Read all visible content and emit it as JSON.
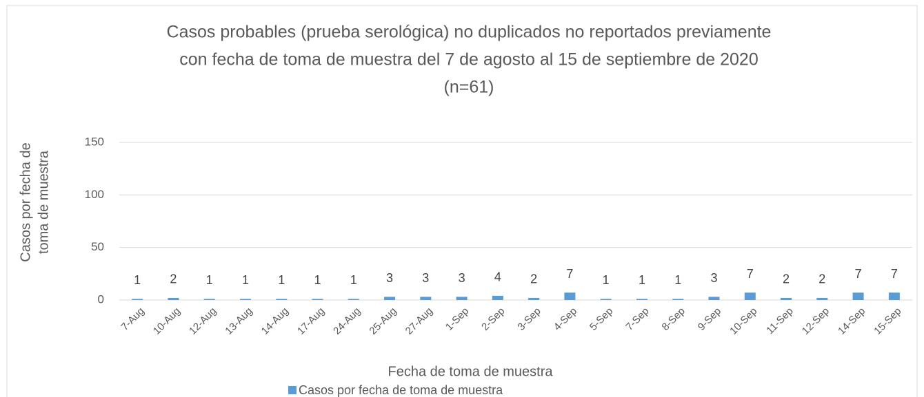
{
  "chart_data": {
    "type": "bar",
    "title": [
      "Casos probables (prueba serológica) no duplicados no reportados previamente",
      "con fecha de toma de muestra del 7 de agosto al 15 de septiembre de 2020",
      "(n=61)"
    ],
    "ylabel": [
      "Casos por fecha de",
      "toma de muestra"
    ],
    "xlabel": "Fecha de toma de muestra",
    "categories": [
      "7-Aug",
      "10-Aug",
      "12-Aug",
      "13-Aug",
      "14-Aug",
      "17-Aug",
      "24-Aug",
      "25-Aug",
      "27-Aug",
      "1-Sep",
      "2-Sep",
      "3-Sep",
      "4-Sep",
      "5-Sep",
      "7-Sep",
      "8-Sep",
      "9-Sep",
      "10-Sep",
      "11-Sep",
      "12-Sep",
      "14-Sep",
      "15-Sep"
    ],
    "series": [
      {
        "name": "Casos por fecha de toma de muestra",
        "color": "#5b9bd5",
        "values": [
          1,
          2,
          1,
          1,
          1,
          1,
          1,
          3,
          3,
          3,
          4,
          2,
          7,
          1,
          1,
          1,
          3,
          7,
          2,
          2,
          7,
          7
        ]
      }
    ],
    "ylim": [
      0,
      150
    ],
    "yticks": [
      0,
      50,
      100,
      150
    ],
    "grid": true,
    "legend": "bottom"
  }
}
